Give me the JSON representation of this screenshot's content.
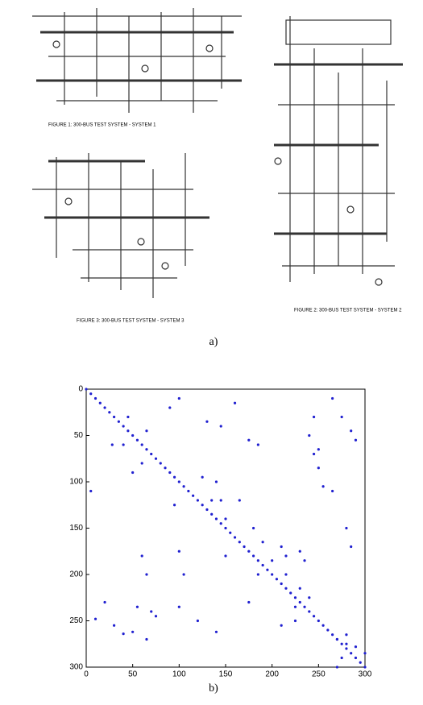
{
  "diagram": {
    "captions": [
      "FIGURE 1: 300-BUS TEST SYSTEM - SYSTEM 1",
      "FIGURE 2: 300-BUS TEST SYSTEM - SYSTEM 2",
      "FIGURE 3: 300-BUS TEST SYSTEM - SYSTEM 3"
    ],
    "label": "a)"
  },
  "chart_data": {
    "type": "scatter",
    "label": "b)",
    "color": "#2020d0",
    "xlim": [
      0,
      300
    ],
    "ylim": [
      0,
      300
    ],
    "y_inverted": true,
    "xticks": [
      0,
      50,
      100,
      150,
      200,
      250,
      300
    ],
    "yticks": [
      0,
      50,
      100,
      150,
      200,
      250,
      300
    ],
    "x": [
      0,
      5,
      10,
      15,
      20,
      25,
      30,
      35,
      40,
      45,
      50,
      55,
      60,
      65,
      70,
      75,
      80,
      85,
      90,
      95,
      100,
      105,
      110,
      115,
      120,
      125,
      130,
      135,
      140,
      145,
      150,
      155,
      160,
      165,
      170,
      175,
      180,
      185,
      190,
      195,
      200,
      205,
      210,
      215,
      220,
      225,
      230,
      235,
      240,
      245,
      250,
      255,
      260,
      265,
      270,
      275,
      280,
      285,
      290,
      295,
      300,
      28,
      45,
      65,
      90,
      100,
      130,
      145,
      160,
      175,
      185,
      5,
      40,
      60,
      50,
      95,
      125,
      140,
      135,
      150,
      165,
      180,
      190,
      200,
      185,
      210,
      215,
      230,
      240,
      245,
      250,
      255,
      265,
      280,
      285,
      60,
      65,
      100,
      105,
      55,
      70,
      75,
      20,
      10,
      30,
      50,
      65,
      40,
      100,
      120,
      140,
      145,
      150,
      215,
      225,
      230,
      235,
      240,
      175,
      225,
      210,
      265,
      275,
      285,
      290,
      245,
      250,
      270,
      280,
      290,
      300,
      275,
      270,
      280
    ],
    "y": [
      0,
      5,
      10,
      15,
      20,
      25,
      30,
      35,
      40,
      45,
      50,
      55,
      60,
      65,
      70,
      75,
      80,
      85,
      90,
      95,
      100,
      105,
      110,
      115,
      120,
      125,
      130,
      135,
      140,
      145,
      150,
      155,
      160,
      165,
      170,
      175,
      180,
      185,
      190,
      195,
      200,
      205,
      210,
      215,
      220,
      225,
      230,
      235,
      240,
      245,
      250,
      255,
      260,
      265,
      270,
      275,
      280,
      285,
      290,
      295,
      300,
      60,
      30,
      45,
      20,
      10,
      35,
      40,
      15,
      55,
      60,
      110,
      60,
      80,
      90,
      125,
      95,
      100,
      120,
      140,
      120,
      150,
      165,
      185,
      200,
      170,
      200,
      215,
      50,
      70,
      85,
      105,
      110,
      150,
      170,
      180,
      200,
      175,
      200,
      235,
      240,
      245,
      230,
      248,
      255,
      262,
      270,
      264,
      235,
      250,
      262,
      120,
      180,
      180,
      235,
      175,
      185,
      225,
      230,
      250,
      255,
      10,
      30,
      45,
      55,
      30,
      65,
      270,
      275,
      278,
      285,
      290,
      300,
      265
    ]
  }
}
